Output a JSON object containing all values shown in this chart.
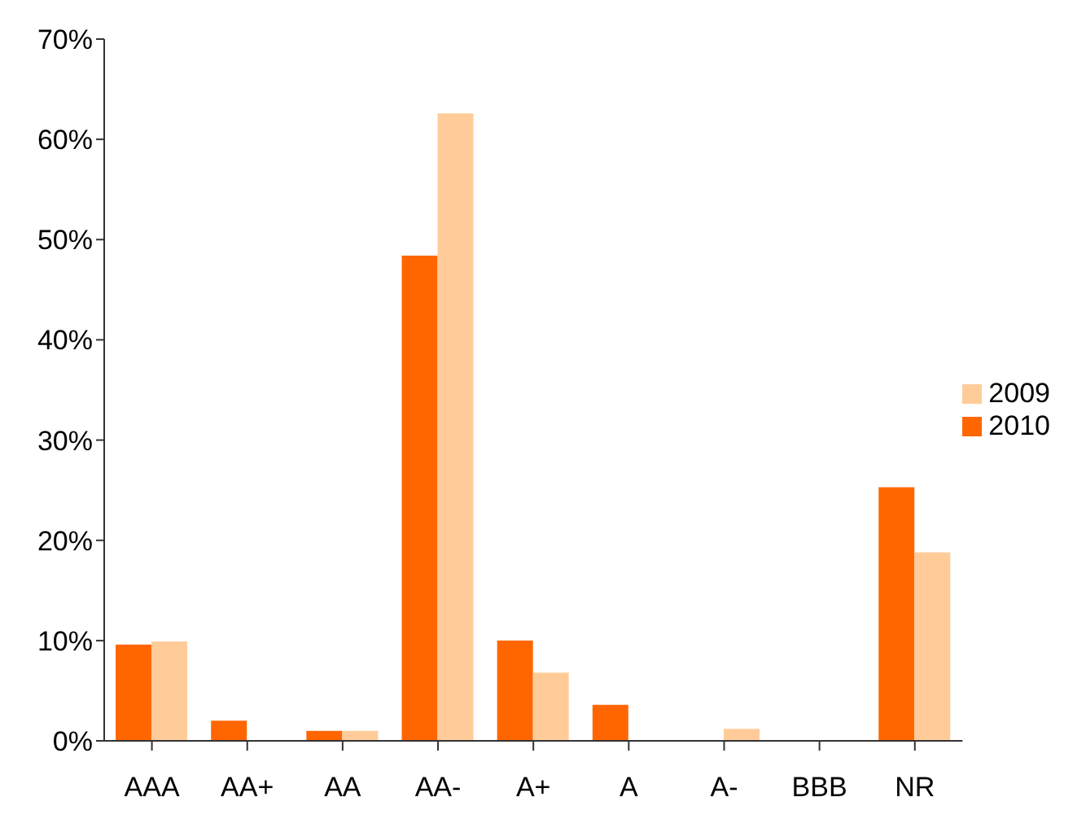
{
  "chart_data": {
    "type": "bar",
    "categories": [
      "AAA",
      "AA+",
      "AA",
      "AA-",
      "A+",
      "A",
      "A-",
      "BBB",
      "NR"
    ],
    "series": [
      {
        "name": "2010",
        "color": "#ff6600",
        "values": [
          9.6,
          2.0,
          1.0,
          48.4,
          10.0,
          3.6,
          0,
          0,
          25.3
        ]
      },
      {
        "name": "2009",
        "color": "#ffcc99",
        "values": [
          9.9,
          0,
          1.0,
          62.6,
          6.8,
          0,
          1.2,
          0,
          18.8
        ]
      }
    ],
    "ylim": [
      0,
      70
    ],
    "yticks": [
      {
        "value": 0,
        "label": "0%"
      },
      {
        "value": 10,
        "label": "10%"
      },
      {
        "value": 20,
        "label": "20%"
      },
      {
        "value": 30,
        "label": "30%"
      },
      {
        "value": 40,
        "label": "40%"
      },
      {
        "value": 50,
        "label": "50%"
      },
      {
        "value": 60,
        "label": "60%"
      },
      {
        "value": 70,
        "label": "70%"
      }
    ],
    "grid": false,
    "legend": "right"
  }
}
